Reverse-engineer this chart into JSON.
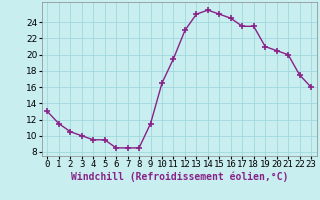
{
  "x": [
    0,
    1,
    2,
    3,
    4,
    5,
    6,
    7,
    8,
    9,
    10,
    11,
    12,
    13,
    14,
    15,
    16,
    17,
    18,
    19,
    20,
    21,
    22,
    23
  ],
  "y": [
    13,
    11.5,
    10.5,
    10,
    9.5,
    9.5,
    8.5,
    8.5,
    8.5,
    11.5,
    16.5,
    19.5,
    23,
    25,
    25.5,
    25,
    24.5,
    23.5,
    23.5,
    21,
    20.5,
    20,
    17.5,
    16
  ],
  "line_color": "#882288",
  "marker": "+",
  "markersize": 4,
  "markeredgewidth": 1.2,
  "bg_color": "#c8eef0",
  "grid_color": "#a0d8dc",
  "xlabel": "Windchill (Refroidissement éolien,°C)",
  "ylabel_ticks": [
    8,
    10,
    12,
    14,
    16,
    18,
    20,
    22,
    24
  ],
  "ylim": [
    7.5,
    26.5
  ],
  "xlim": [
    -0.5,
    23.5
  ],
  "xtick_labels": [
    "0",
    "1",
    "2",
    "3",
    "4",
    "5",
    "6",
    "7",
    "8",
    "9",
    "10",
    "11",
    "12",
    "13",
    "14",
    "15",
    "16",
    "17",
    "18",
    "19",
    "20",
    "21",
    "22",
    "23"
  ],
  "tick_fontsize": 6.5,
  "xlabel_fontsize": 7,
  "linewidth": 1.0
}
